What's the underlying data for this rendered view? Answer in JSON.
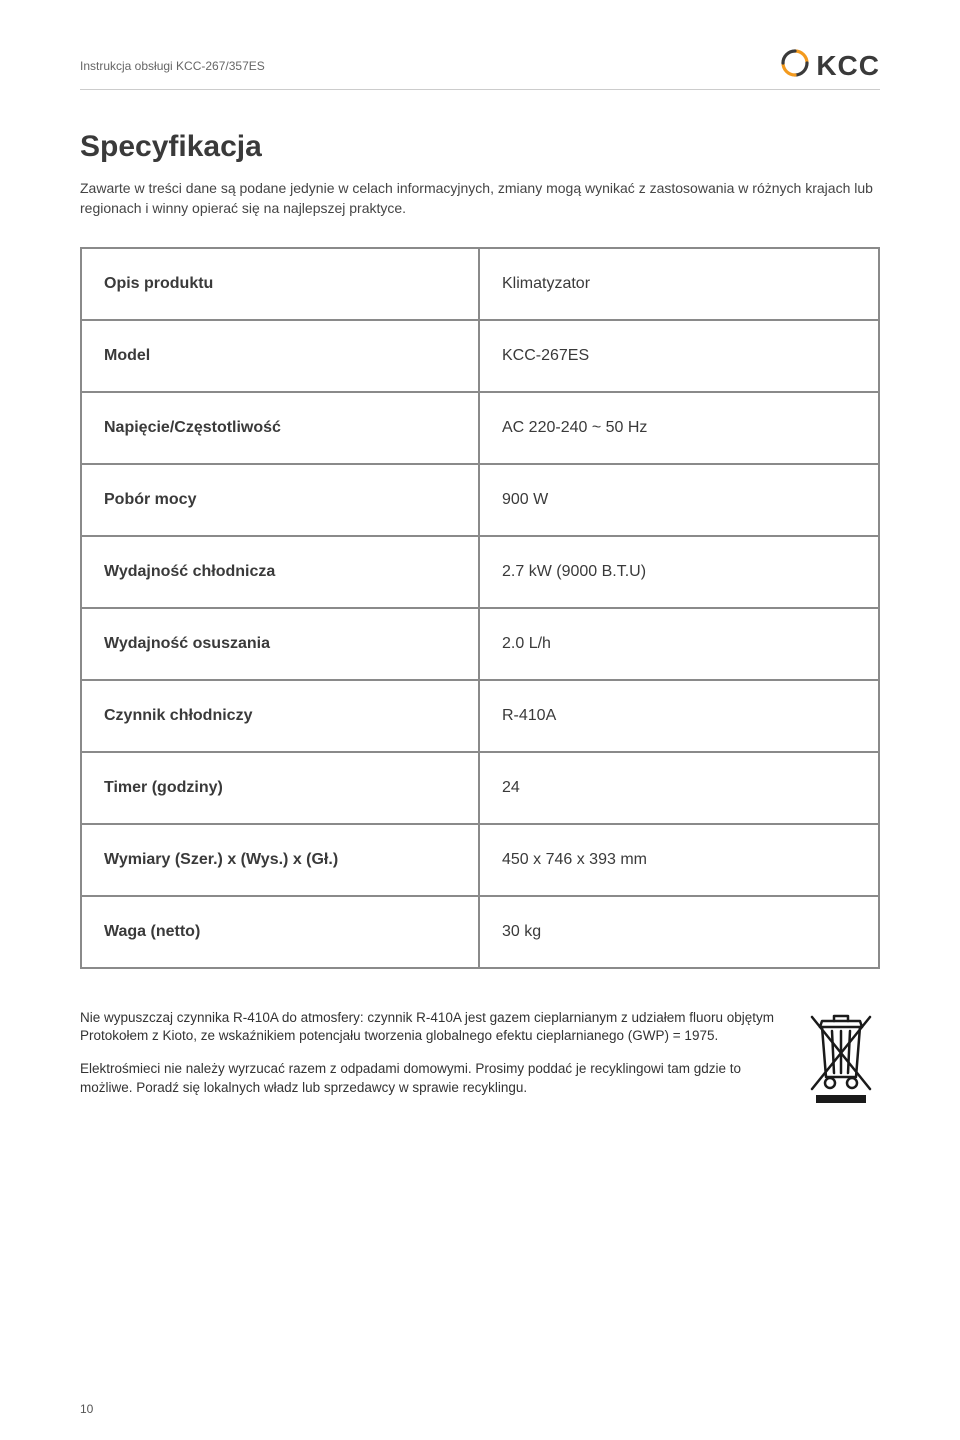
{
  "header": {
    "doc_title": "Instrukcja obsługi KCC-267/357ES",
    "logo_text": "KCC"
  },
  "title": "Specyfikacja",
  "intro": "Zawarte w treści dane są podane jedynie w celach informacyjnych, zmiany mogą wynikać z zastosowania w różnych krajach lub regionach i winny opierać się na najlepszej praktyce.",
  "spec": {
    "rows": [
      {
        "label": "Opis produktu",
        "value": "Klimatyzator"
      },
      {
        "label": "Model",
        "value": "KCC-267ES"
      },
      {
        "label": "Napięcie/Częstotliwość",
        "value": "AC 220-240 ~ 50 Hz"
      },
      {
        "label": "Pobór mocy",
        "value": "900 W"
      },
      {
        "label": "Wydajność chłodnicza",
        "value": "2.7 kW (9000 B.T.U)"
      },
      {
        "label": "Wydajność osuszania",
        "value": "2.0 L/h"
      },
      {
        "label": "Czynnik chłodniczy",
        "value": "R-410A"
      },
      {
        "label": "Timer (godziny)",
        "value": "24"
      },
      {
        "label": "Wymiary (Szer.) x (Wys.) x (Gł.)",
        "value": "450 x 746 x 393 mm"
      },
      {
        "label": "Waga (netto)",
        "value": "30 kg"
      }
    ]
  },
  "footer": {
    "para1": "Nie wypuszczaj czynnika R-410A do atmosfery: czynnik R-410A jest gazem cieplarnianym z udziałem fluoru objętym Protokołem z Kioto, ze wskaźnikiem potencjału tworzenia globalnego efektu cieplarnianego (GWP) = 1975.",
    "para2": "Elektrośmieci nie należy wyrzucać razem z odpadami domowymi. Prosimy poddać je recyklingowi tam gdzie to możliwe. Poradź się lokalnych władz lub sprzedawcy w sprawie recyklingu."
  },
  "page_number": "10",
  "colors": {
    "text": "#3a3a3a",
    "rule": "#cccccc",
    "table_border": "#8a8a8a",
    "logo_orange": "#f39a1e",
    "logo_dark": "#3a3a3a"
  }
}
